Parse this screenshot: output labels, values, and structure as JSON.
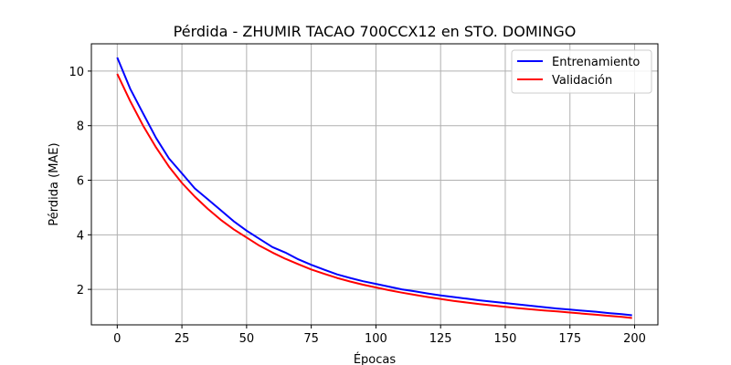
{
  "chart_data": {
    "type": "line",
    "title": "Pérdida - ZHUMIR TACAO 700CCX12 en STO. DOMINGO",
    "xlabel": "Épocas",
    "ylabel": "Pérdida (MAE)",
    "xlim": [
      -10,
      209
    ],
    "ylim": [
      0.7,
      11.0
    ],
    "xticks": [
      0,
      25,
      50,
      75,
      100,
      125,
      150,
      175,
      200
    ],
    "yticks": [
      2,
      4,
      6,
      8,
      10
    ],
    "grid": true,
    "legend_position": "top-right",
    "x": [
      0,
      5,
      10,
      15,
      20,
      25,
      30,
      35,
      40,
      45,
      50,
      55,
      60,
      65,
      70,
      75,
      80,
      85,
      90,
      95,
      100,
      105,
      110,
      115,
      120,
      125,
      130,
      135,
      140,
      145,
      150,
      155,
      160,
      165,
      170,
      175,
      180,
      185,
      190,
      195,
      199
    ],
    "series": [
      {
        "name": "Entrenamiento",
        "color": "#0000ff",
        "values": [
          10.5,
          9.35,
          8.45,
          7.55,
          6.8,
          6.25,
          5.7,
          5.3,
          4.9,
          4.5,
          4.15,
          3.85,
          3.55,
          3.35,
          3.1,
          2.9,
          2.72,
          2.55,
          2.42,
          2.3,
          2.2,
          2.1,
          2.0,
          1.93,
          1.85,
          1.78,
          1.72,
          1.66,
          1.6,
          1.55,
          1.5,
          1.45,
          1.4,
          1.35,
          1.3,
          1.26,
          1.22,
          1.18,
          1.13,
          1.09,
          1.05
        ]
      },
      {
        "name": "Validación",
        "color": "#ff0000",
        "values": [
          9.9,
          8.9,
          8.0,
          7.2,
          6.5,
          5.9,
          5.4,
          4.95,
          4.55,
          4.2,
          3.9,
          3.6,
          3.35,
          3.12,
          2.92,
          2.73,
          2.57,
          2.42,
          2.29,
          2.17,
          2.07,
          1.97,
          1.88,
          1.8,
          1.72,
          1.65,
          1.58,
          1.52,
          1.46,
          1.41,
          1.36,
          1.31,
          1.27,
          1.23,
          1.19,
          1.15,
          1.11,
          1.07,
          1.03,
          0.99,
          0.95
        ]
      }
    ]
  }
}
